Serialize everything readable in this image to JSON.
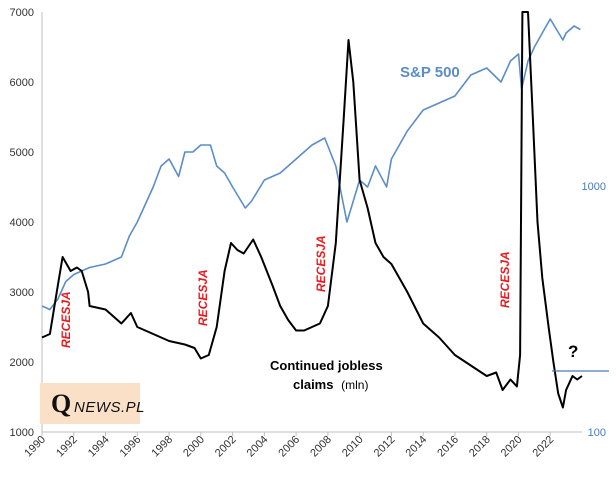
{
  "chart_data": {
    "type": "line",
    "title": "",
    "xlabel": "",
    "ylabel_left": "Continued jobless claims",
    "ylabel_right": "S&P 500",
    "x_range": [
      1990,
      2024
    ],
    "x_ticks": [
      "1990",
      "1992",
      "1994",
      "1996",
      "1998",
      "2000",
      "2002",
      "2004",
      "2006",
      "2008",
      "2010",
      "2012",
      "2014",
      "2016",
      "2018",
      "2020",
      "2022"
    ],
    "ylim_left": [
      1000,
      7000
    ],
    "y_ticks_left": [
      "1000",
      "2000",
      "3000",
      "4000",
      "5000",
      "6000",
      "7000"
    ],
    "y_ticks_right": [
      "100",
      "1000"
    ],
    "grid": false,
    "series": [
      {
        "name": "S&P 500",
        "color": "#5b8dc9",
        "label": "S&P 500",
        "x": [
          1990.0,
          1990.5,
          1991.0,
          1991.5,
          1992.0,
          1993.0,
          1994.0,
          1995.0,
          1995.5,
          1996.0,
          1997.0,
          1997.5,
          1998.0,
          1998.6,
          1999.0,
          1999.5,
          2000.0,
          2000.6,
          2001.0,
          2001.5,
          2002.0,
          2002.8,
          2003.2,
          2004.0,
          2005.0,
          2006.0,
          2007.0,
          2007.8,
          2008.5,
          2009.2,
          2009.6,
          2010.0,
          2010.5,
          2011.0,
          2011.7,
          2012.0,
          2013.0,
          2014.0,
          2015.0,
          2016.0,
          2017.0,
          2018.0,
          2018.9,
          2019.5,
          2020.0,
          2020.2,
          2020.6,
          2021.0,
          2021.5,
          2022.0,
          2022.8,
          2023.0,
          2023.5,
          2023.9
        ],
        "values": [
          2800,
          2750,
          2900,
          3150,
          3250,
          3350,
          3400,
          3500,
          3800,
          4000,
          4500,
          4800,
          4900,
          4650,
          5000,
          5000,
          5100,
          5100,
          4800,
          4700,
          4500,
          4200,
          4300,
          4600,
          4700,
          4900,
          5100,
          5200,
          4800,
          4000,
          4300,
          4600,
          4500,
          4800,
          4500,
          4900,
          5300,
          5600,
          5700,
          5800,
          6100,
          6200,
          6000,
          6300,
          6400,
          5900,
          6300,
          6500,
          6700,
          6900,
          6600,
          6700,
          6800,
          6750
        ]
      },
      {
        "name": "Continued jobless claims",
        "color": "#000000",
        "label": "Continued jobless claims (mln)",
        "x": [
          1990.0,
          1990.5,
          1991.0,
          1991.3,
          1991.8,
          1992.2,
          1992.5,
          1992.9,
          1993.0,
          1994.0,
          1994.5,
          1995.0,
          1995.6,
          1996.0,
          1997.0,
          1998.0,
          1999.0,
          1999.6,
          2000.0,
          2000.5,
          2001.0,
          2001.5,
          2001.9,
          2002.3,
          2002.7,
          2003.3,
          2003.8,
          2004.5,
          2005.0,
          2005.5,
          2006.0,
          2006.5,
          2007.0,
          2007.5,
          2008.0,
          2008.5,
          2009.0,
          2009.3,
          2009.6,
          2010.0,
          2010.5,
          2011.0,
          2011.5,
          2012.0,
          2013.0,
          2014.0,
          2015.0,
          2016.0,
          2017.0,
          2018.0,
          2018.6,
          2019.0,
          2019.5,
          2019.9,
          2020.1,
          2020.25,
          2020.35,
          2020.6,
          2020.9,
          2021.2,
          2021.5,
          2021.9,
          2022.2,
          2022.5,
          2022.8,
          2023.0,
          2023.4,
          2023.7,
          2024.0
        ],
        "values": [
          2350,
          2400,
          3100,
          3500,
          3300,
          3350,
          3300,
          3000,
          2800,
          2750,
          2650,
          2550,
          2700,
          2500,
          2400,
          2300,
          2250,
          2200,
          2050,
          2100,
          2500,
          3300,
          3700,
          3600,
          3550,
          3750,
          3500,
          3100,
          2800,
          2600,
          2450,
          2450,
          2500,
          2550,
          2800,
          3700,
          5500,
          6600,
          6000,
          4600,
          4200,
          3700,
          3500,
          3400,
          3000,
          2550,
          2350,
          2100,
          1950,
          1800,
          1850,
          1600,
          1750,
          1650,
          2100,
          7000,
          7000,
          7000,
          5500,
          4000,
          3200,
          2500,
          2000,
          1550,
          1350,
          1600,
          1800,
          1750,
          1800
        ]
      }
    ],
    "annotations": [
      {
        "text": "RECESJA",
        "x": 1991.3
      },
      {
        "text": "RECESJA",
        "x": 2001.5
      },
      {
        "text": "RECESJA",
        "x": 2008.3
      },
      {
        "text": "RECESJA",
        "x": 2020.0
      },
      {
        "text": "Continued jobless",
        "line": 1
      },
      {
        "text": "claims",
        "line": 2
      },
      {
        "text": "(mln)",
        "line": 2
      },
      {
        "text": "?",
        "x": 2023.5
      },
      {
        "text": "S&P 500",
        "series": 0
      }
    ]
  },
  "logo": {
    "q": "Q",
    "rest": "NEWS.PL"
  }
}
